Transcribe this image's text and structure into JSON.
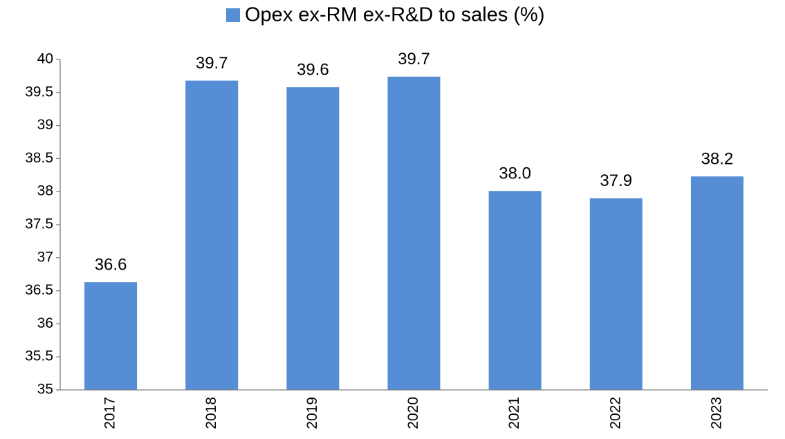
{
  "chart_data": {
    "type": "bar",
    "categories": [
      "2017",
      "2018",
      "2019",
      "2020",
      "2021",
      "2022",
      "2023"
    ],
    "series": [
      {
        "name": "Opex ex-RM ex-R&D to sales (%)",
        "color": "#558ed5",
        "values": [
          36.63,
          39.68,
          39.58,
          39.74,
          38.01,
          37.9,
          38.23
        ],
        "value_labels": [
          "36.6",
          "39.7",
          "39.6",
          "39.7",
          "38.0",
          "37.9",
          "38.2"
        ]
      }
    ],
    "ylim": [
      35,
      40
    ],
    "yticks": [
      35,
      35.5,
      36,
      36.5,
      37,
      37.5,
      38,
      38.5,
      39,
      39.5,
      40
    ],
    "grid": false,
    "legend": "top"
  }
}
